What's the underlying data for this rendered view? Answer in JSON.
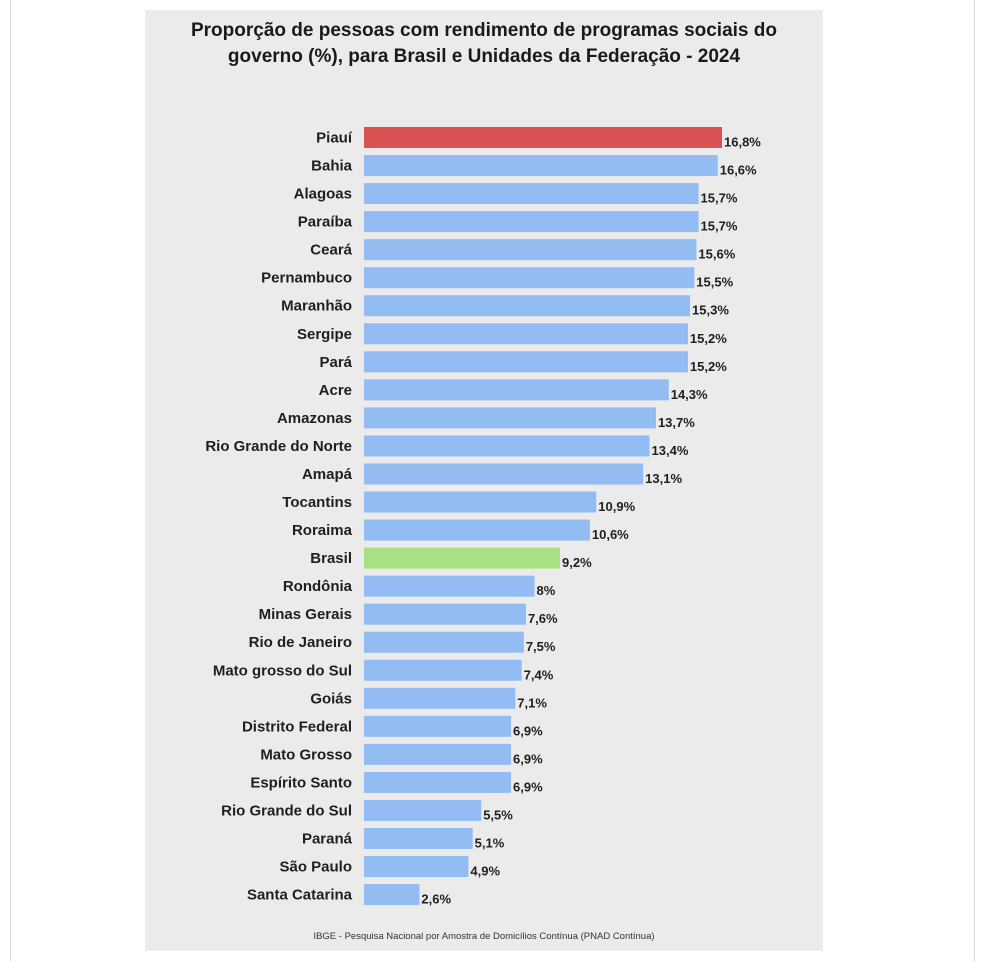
{
  "title_line1": "Proporção de pessoas com rendimento de programas sociais do",
  "title_line2": "governo (%), para Brasil e Unidades da Federação - 2024",
  "source": "IBGE - Pesquisa Nacional por Amostra de Domicílios Contínua (PNAD Contínua)",
  "colors": {
    "default_bar": "#93bcf3",
    "highlight_top": "#d95252",
    "highlight_brasil": "#a9e084",
    "background": "#ebebeb"
  },
  "chart_data": {
    "type": "bar",
    "orientation": "horizontal",
    "title": "Proporção de pessoas com rendimento de programas sociais do governo (%), para Brasil e Unidades da Federação - 2024",
    "xlabel": "",
    "ylabel": "",
    "xlim": [
      0,
      16.8
    ],
    "grid": false,
    "categories": [
      "Piauí",
      "Bahia",
      "Alagoas",
      "Paraíba",
      "Ceará",
      "Pernambuco",
      "Maranhão",
      "Sergipe",
      "Pará",
      "Acre",
      "Amazonas",
      "Rio Grande do Norte",
      "Amapá",
      "Tocantins",
      "Roraima",
      "Brasil",
      "Rondônia",
      "Minas Gerais",
      "Rio de Janeiro",
      "Mato grosso do Sul",
      "Goiás",
      "Distrito Federal",
      "Mato Grosso",
      "Espírito Santo",
      "Rio Grande do Sul",
      "Paraná",
      "São Paulo",
      "Santa Catarina"
    ],
    "values": [
      16.8,
      16.6,
      15.7,
      15.7,
      15.6,
      15.5,
      15.3,
      15.2,
      15.2,
      14.3,
      13.7,
      13.4,
      13.1,
      10.9,
      10.6,
      9.2,
      8,
      7.6,
      7.5,
      7.4,
      7.1,
      6.9,
      6.9,
      6.9,
      5.5,
      5.1,
      4.9,
      2.6
    ],
    "value_labels": [
      "16,8%",
      "16,6%",
      "15,7%",
      "15,7%",
      "15,6%",
      "15,5%",
      "15,3%",
      "15,2%",
      "15,2%",
      "14,3%",
      "13,7%",
      "13,4%",
      "13,1%",
      "10,9%",
      "10,6%",
      "9,2%",
      "8%",
      "7,6%",
      "7,5%",
      "7,4%",
      "7,1%",
      "6,9%",
      "6,9%",
      "6,9%",
      "5,5%",
      "5,1%",
      "4,9%",
      "2,6%"
    ],
    "bar_colors": [
      "#d95252",
      "#93bcf3",
      "#93bcf3",
      "#93bcf3",
      "#93bcf3",
      "#93bcf3",
      "#93bcf3",
      "#93bcf3",
      "#93bcf3",
      "#93bcf3",
      "#93bcf3",
      "#93bcf3",
      "#93bcf3",
      "#93bcf3",
      "#93bcf3",
      "#a9e084",
      "#93bcf3",
      "#93bcf3",
      "#93bcf3",
      "#93bcf3",
      "#93bcf3",
      "#93bcf3",
      "#93bcf3",
      "#93bcf3",
      "#93bcf3",
      "#93bcf3",
      "#93bcf3",
      "#93bcf3"
    ]
  }
}
